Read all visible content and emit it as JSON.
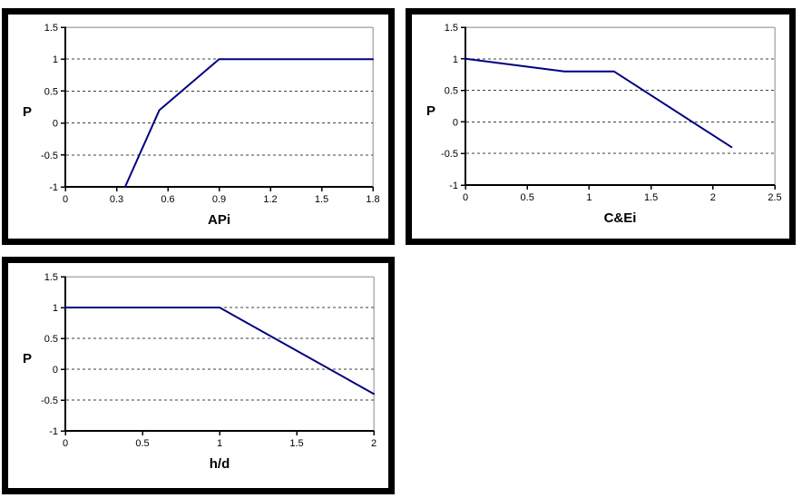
{
  "colors": {
    "line": "#000080",
    "gridline": "#404040",
    "plot_border": "#b0b0b0",
    "axis": "#000000",
    "text": "#000000",
    "frame_border": "#000000",
    "background": "#ffffff"
  },
  "ylabel_shared": "P",
  "chart_data": [
    {
      "type": "line",
      "title": "",
      "xlabel": "APi",
      "ylabel": "P",
      "x": [
        0.35,
        0.55,
        0.9,
        1.8
      ],
      "y": [
        -1,
        0.2,
        1,
        1
      ],
      "xlim": [
        0,
        1.8
      ],
      "ylim": [
        -1,
        1.5
      ],
      "xticks": [
        0,
        0.3,
        0.6,
        0.9,
        1.2,
        1.5,
        1.8
      ],
      "yticks": [
        -1,
        -0.5,
        0,
        0.5,
        1,
        1.5
      ],
      "grid": "horizontal-dashed",
      "legend": "none",
      "line_color": "#000080"
    },
    {
      "type": "line",
      "title": "",
      "xlabel": "C&Ei",
      "ylabel": "P",
      "x": [
        0,
        0.8,
        1.2,
        2.15
      ],
      "y": [
        1,
        0.8,
        0.8,
        -0.4
      ],
      "xlim": [
        0,
        2.5
      ],
      "ylim": [
        -1,
        1.5
      ],
      "xticks": [
        0,
        0.5,
        1,
        1.5,
        2,
        2.5
      ],
      "yticks": [
        -1,
        -0.5,
        0,
        0.5,
        1,
        1.5
      ],
      "grid": "horizontal-dashed",
      "legend": "none",
      "line_color": "#000080"
    },
    {
      "type": "line",
      "title": "",
      "xlabel": "h/d",
      "ylabel": "P",
      "x": [
        0,
        1,
        2
      ],
      "y": [
        1,
        1,
        -0.4
      ],
      "xlim": [
        0,
        2
      ],
      "ylim": [
        -1,
        1.5
      ],
      "xticks": [
        0,
        0.5,
        1,
        1.5,
        2
      ],
      "yticks": [
        -1,
        -0.5,
        0,
        0.5,
        1,
        1.5
      ],
      "grid": "horizontal-dashed",
      "legend": "none",
      "line_color": "#000080"
    }
  ]
}
